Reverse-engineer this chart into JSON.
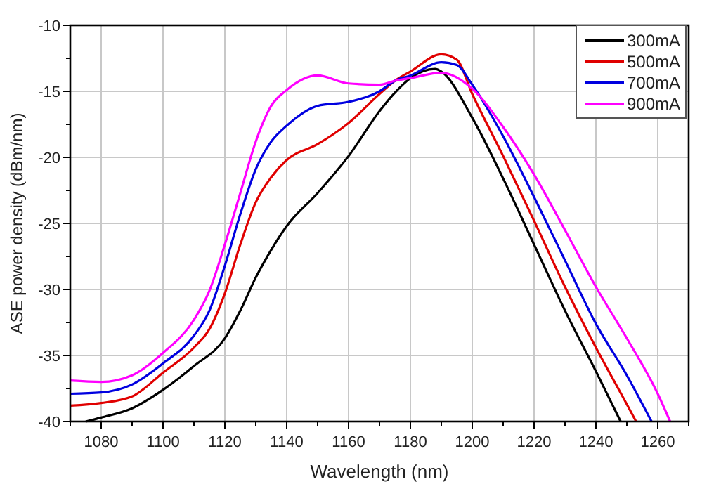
{
  "chart_data": {
    "type": "line",
    "xlabel": "Wavelength (nm)",
    "ylabel": "ASE power density (dBm/nm)",
    "xlim": [
      1070,
      1270
    ],
    "ylim": [
      -40,
      -10
    ],
    "xticks": [
      {
        "value": 1070,
        "label": null
      },
      1080,
      {
        "value": 1090,
        "label": null
      },
      1100,
      {
        "value": 1110,
        "label": null
      },
      1120,
      {
        "value": 1130,
        "label": null
      },
      1140,
      {
        "value": 1150,
        "label": null
      },
      1160,
      {
        "value": 1170,
        "label": null
      },
      1180,
      {
        "value": 1190,
        "label": null
      },
      1200,
      {
        "value": 1210,
        "label": null
      },
      1220,
      {
        "value": 1230,
        "label": null
      },
      1240,
      {
        "value": 1250,
        "label": null
      },
      1260,
      {
        "value": 1270,
        "label": null
      }
    ],
    "yticks": [
      -40,
      {
        "value": -37.5,
        "label": null
      },
      -35,
      {
        "value": -32.5,
        "label": null
      },
      -30,
      {
        "value": -27.5,
        "label": null
      },
      -25,
      {
        "value": -22.5,
        "label": null
      },
      -20,
      {
        "value": -17.5,
        "label": null
      },
      -15,
      {
        "value": -12.5,
        "label": null
      },
      -10
    ],
    "grid": true,
    "legend": "top right",
    "line_style": "solid",
    "marker": "none",
    "series": [
      {
        "name": "300mA",
        "color": "#000000",
        "x": [
          1075,
          1080,
          1090,
          1100,
          1110,
          1120,
          1125,
          1130,
          1135,
          1140,
          1150,
          1160,
          1170,
          1175,
          1180,
          1188,
          1190,
          1200,
          1210,
          1220,
          1230,
          1240,
          1248
        ],
        "values": [
          -40,
          -39.7,
          -39.0,
          -37.6,
          -35.8,
          -33.7,
          -31.6,
          -29.1,
          -27.0,
          -25.2,
          -22.7,
          -19.9,
          -16.5,
          -15.1,
          -14.0,
          -13.3,
          -13.5,
          -17.0,
          -21.6,
          -26.6,
          -31.6,
          -36.2,
          -40
        ]
      },
      {
        "name": "500mA",
        "color": "#e00000",
        "x": [
          1070,
          1080,
          1090,
          1100,
          1110,
          1115,
          1120,
          1125,
          1130,
          1135,
          1140,
          1150,
          1160,
          1170,
          1175,
          1180,
          1190,
          1195,
          1200,
          1210,
          1220,
          1230,
          1240,
          1250,
          1253
        ],
        "values": [
          -38.8,
          -38.6,
          -38.1,
          -36.3,
          -34.4,
          -33.0,
          -30.3,
          -26.6,
          -23.4,
          -21.5,
          -20.2,
          -19.0,
          -17.4,
          -15.2,
          -14.2,
          -13.5,
          -12.2,
          -12.6,
          -15.2,
          -19.9,
          -24.8,
          -29.8,
          -34.4,
          -38.7,
          -40
        ]
      },
      {
        "name": "700mA",
        "color": "#0000e0",
        "x": [
          1070,
          1080,
          1090,
          1100,
          1110,
          1115,
          1120,
          1125,
          1130,
          1135,
          1140,
          1150,
          1160,
          1170,
          1175,
          1180,
          1190,
          1195,
          1200,
          1210,
          1220,
          1230,
          1240,
          1250,
          1258
        ],
        "values": [
          -37.9,
          -37.8,
          -37.2,
          -35.6,
          -33.5,
          -31.6,
          -28.2,
          -24.3,
          -20.9,
          -18.8,
          -17.6,
          -16.1,
          -15.8,
          -15.0,
          -14.2,
          -13.8,
          -12.8,
          -13.0,
          -14.5,
          -18.4,
          -23.0,
          -27.8,
          -32.6,
          -36.5,
          -40
        ]
      },
      {
        "name": "900mA",
        "color": "#ff00ff",
        "x": [
          1070,
          1080,
          1090,
          1100,
          1110,
          1115,
          1120,
          1125,
          1130,
          1135,
          1140,
          1150,
          1160,
          1170,
          1175,
          1180,
          1190,
          1200,
          1210,
          1220,
          1230,
          1240,
          1250,
          1260,
          1264
        ],
        "values": [
          -36.9,
          -37.0,
          -36.5,
          -34.8,
          -32.3,
          -30.1,
          -26.6,
          -22.7,
          -18.8,
          -16.1,
          -14.9,
          -13.8,
          -14.4,
          -14.5,
          -14.2,
          -14.0,
          -13.6,
          -14.8,
          -17.7,
          -21.3,
          -25.5,
          -29.8,
          -33.7,
          -37.9,
          -40
        ]
      }
    ]
  }
}
